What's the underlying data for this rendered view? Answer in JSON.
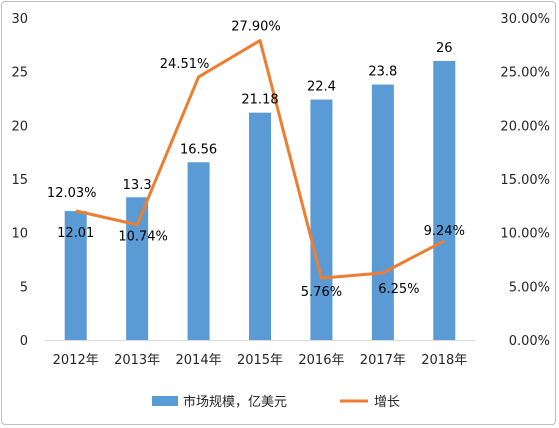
{
  "chart_data": {
    "type": "bar",
    "categories": [
      "2012年",
      "2013年",
      "2014年",
      "2015年",
      "2016年",
      "2017年",
      "2018年"
    ],
    "series": [
      {
        "name": "市场规模，亿美元",
        "type": "bar",
        "axis": "left",
        "color": "#5B9BD5",
        "values": [
          12.01,
          13.3,
          16.56,
          21.18,
          22.4,
          23.8,
          26
        ],
        "labels": [
          "12.01",
          "13.3",
          "16.56",
          "21.18",
          "22.4",
          "23.8",
          "26"
        ]
      },
      {
        "name": "增长",
        "type": "line",
        "axis": "right",
        "color": "#ED7D31",
        "values": [
          12.03,
          10.74,
          24.51,
          27.9,
          5.76,
          6.25,
          9.24
        ],
        "labels": [
          "12.03%",
          "10.74%",
          "24.51%",
          "27.90%",
          "5.76%",
          "6.25%",
          "9.24%"
        ]
      }
    ],
    "y_left": {
      "range": [
        0,
        30
      ],
      "ticks": [
        "0",
        "5",
        "10",
        "15",
        "20",
        "25",
        "30"
      ]
    },
    "y_right": {
      "range": [
        0,
        30
      ],
      "ticks": [
        "0.00%",
        "5.00%",
        "10.00%",
        "15.00%",
        "20.00%",
        "25.00%",
        "30.00%"
      ]
    },
    "grid": false,
    "legend_position": "bottom"
  }
}
